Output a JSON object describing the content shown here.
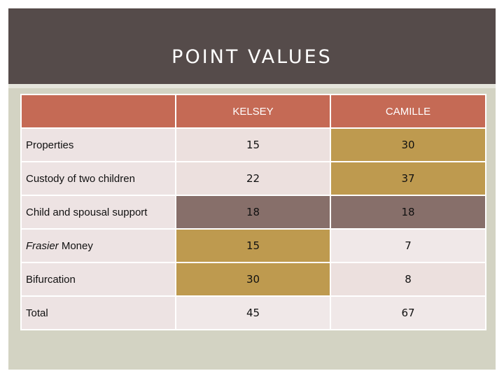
{
  "title": "POINT VALUES",
  "table": {
    "columns": [
      "",
      "KELSEY",
      "CAMILLE"
    ],
    "rows": [
      {
        "label_prefix": "",
        "label_rest": "Properties",
        "kelsey": "15",
        "camille": "30"
      },
      {
        "label_prefix": "",
        "label_rest": "Custody of two children",
        "kelsey": "22",
        "camille": "37"
      },
      {
        "label_prefix": "",
        "label_rest": "Child and spousal support",
        "kelsey": "18",
        "camille": "18"
      },
      {
        "label_prefix": "Frasier",
        "label_rest": " Money",
        "kelsey": "15",
        "camille": "7"
      },
      {
        "label_prefix": "",
        "label_rest": "Bifurcation",
        "kelsey": "30",
        "camille": "8"
      },
      {
        "label_prefix": "",
        "label_rest": "Total",
        "kelsey": "45",
        "camille": "67"
      }
    ]
  },
  "colors": {
    "header": "#c56a55",
    "title_bar": "#554b4a",
    "gold": "#be9a4f",
    "mauve": "#876f6a",
    "light": "#ece0de"
  }
}
